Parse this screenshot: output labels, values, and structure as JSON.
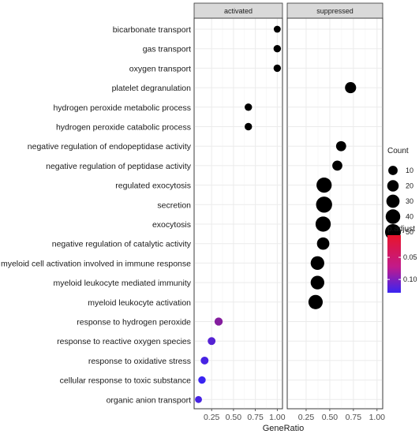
{
  "chart_data": {
    "type": "scatter",
    "xlabel": "GeneRatio",
    "facets": [
      "activated",
      "suppressed"
    ],
    "xlim": [
      0,
      1
    ],
    "xticks": [
      "0.25",
      "0.50",
      "0.75",
      "1.00"
    ],
    "categories": [
      "bicarbonate transport",
      "gas transport",
      "oxygen transport",
      "platelet degranulation",
      "hydrogen peroxide metabolic process",
      "hydrogen peroxide catabolic process",
      "negative regulation of endopeptidase activity",
      "negative regulation of peptidase activity",
      "regulated exocytosis",
      "secretion",
      "exocytosis",
      "negative regulation of catalytic activity",
      "myeloid cell activation involved in immune response",
      "myeloid leukocyte mediated immunity",
      "myeloid leukocyte activation",
      "response to hydrogen peroxide",
      "response to reactive oxygen species",
      "response to oxidative stress",
      "cellular response to toxic substance",
      "organic anion transport"
    ],
    "points": [
      {
        "facet": "activated",
        "term": "bicarbonate transport",
        "x": 1.0,
        "count": 3,
        "p_adjust": 0.03
      },
      {
        "facet": "activated",
        "term": "gas transport",
        "x": 1.0,
        "count": 4,
        "p_adjust": 0.03
      },
      {
        "facet": "activated",
        "term": "oxygen transport",
        "x": 1.0,
        "count": 4,
        "p_adjust": 0.03
      },
      {
        "facet": "activated",
        "term": "hydrogen peroxide metabolic process",
        "x": 0.67,
        "count": 4,
        "p_adjust": 0.03
      },
      {
        "facet": "activated",
        "term": "hydrogen peroxide catabolic process",
        "x": 0.67,
        "count": 4,
        "p_adjust": 0.03
      },
      {
        "facet": "activated",
        "term": "response to hydrogen peroxide",
        "x": 0.33,
        "count": 6,
        "p_adjust": 0.075
      },
      {
        "facet": "activated",
        "term": "response to reactive oxygen species",
        "x": 0.25,
        "count": 5,
        "p_adjust": 0.11
      },
      {
        "facet": "activated",
        "term": "response to oxidative stress",
        "x": 0.17,
        "count": 5,
        "p_adjust": 0.12
      },
      {
        "facet": "activated",
        "term": "cellular response to toxic substance",
        "x": 0.14,
        "count": 4,
        "p_adjust": 0.13
      },
      {
        "facet": "activated",
        "term": "organic anion transport",
        "x": 0.1,
        "count": 3,
        "p_adjust": 0.12
      },
      {
        "facet": "suppressed",
        "term": "platelet degranulation",
        "x": 0.72,
        "count": 18,
        "p_adjust": 0.035
      },
      {
        "facet": "suppressed",
        "term": "negative regulation of endopeptidase activity",
        "x": 0.62,
        "count": 13,
        "p_adjust": 0.025
      },
      {
        "facet": "suppressed",
        "term": "negative regulation of peptidase activity",
        "x": 0.58,
        "count": 13,
        "p_adjust": 0.035
      },
      {
        "facet": "suppressed",
        "term": "regulated exocytosis",
        "x": 0.44,
        "count": 45,
        "p_adjust": 0.01
      },
      {
        "facet": "suppressed",
        "term": "secretion",
        "x": 0.44,
        "count": 52,
        "p_adjust": 0.02
      },
      {
        "facet": "suppressed",
        "term": "exocytosis",
        "x": 0.43,
        "count": 45,
        "p_adjust": 0.015
      },
      {
        "facet": "suppressed",
        "term": "negative regulation of catalytic activity",
        "x": 0.43,
        "count": 25,
        "p_adjust": 0.03
      },
      {
        "facet": "suppressed",
        "term": "myeloid cell activation involved in immune response",
        "x": 0.37,
        "count": 33,
        "p_adjust": 0.035
      },
      {
        "facet": "suppressed",
        "term": "myeloid leukocyte mediated immunity",
        "x": 0.37,
        "count": 33,
        "p_adjust": 0.035
      },
      {
        "facet": "suppressed",
        "term": "myeloid leukocyte activation",
        "x": 0.35,
        "count": 38,
        "p_adjust": 0.035
      }
    ],
    "size_legend": {
      "title": "Count",
      "values": [
        10,
        20,
        30,
        40,
        50
      ]
    },
    "color_legend": {
      "title": "p.adjust",
      "labels": [
        "0.05",
        "0.10"
      ],
      "low_color": "#e8142b",
      "high_color": "#3a24f2",
      "range": [
        0.0,
        0.13
      ]
    },
    "grid": true,
    "legend_position": "right"
  }
}
